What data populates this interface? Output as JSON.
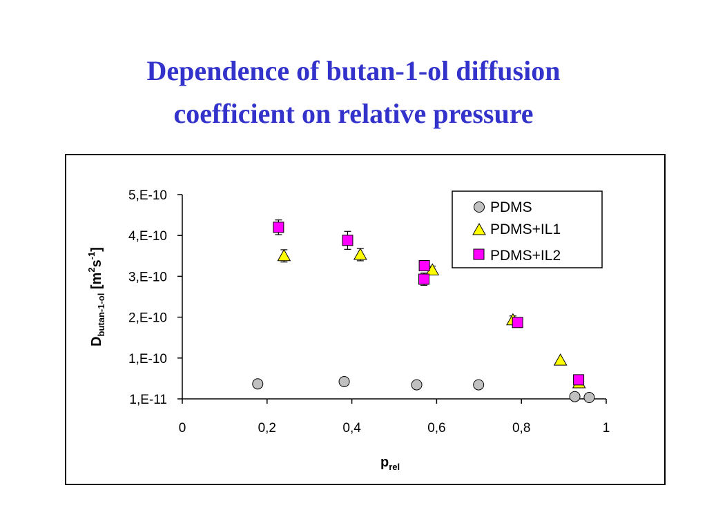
{
  "slide": {
    "title_line1": "Dependence of butan-1-ol diffusion",
    "title_line2": "coefficient on relative pressure"
  },
  "chart_data": {
    "type": "scatter",
    "xlim": [
      0,
      1
    ],
    "ylim": [
      1e-11,
      5e-10
    ],
    "x_ticks": [
      {
        "value": 0,
        "label": "0"
      },
      {
        "value": 0.2,
        "label": "0,2"
      },
      {
        "value": 0.4,
        "label": "0,4"
      },
      {
        "value": 0.6,
        "label": "0,6"
      },
      {
        "value": 0.8,
        "label": "0,8"
      },
      {
        "value": 1,
        "label": "1"
      }
    ],
    "y_ticks": [
      {
        "value": 1e-11,
        "label": "1,E-11"
      },
      {
        "value": 1e-10,
        "label": "1,E-10"
      },
      {
        "value": 2e-10,
        "label": "2,E-10"
      },
      {
        "value": 3e-10,
        "label": "3,E-10"
      },
      {
        "value": 4e-10,
        "label": "4,E-10"
      },
      {
        "value": 5e-10,
        "label": "5,E-10"
      }
    ],
    "xlabel": {
      "main": "p",
      "sub": "rel"
    },
    "ylabel": {
      "main": "D",
      "sub": "butan-1-ol",
      "unit_open": " [m",
      "sup1": "2",
      "mid": "s",
      "sup2": "-1",
      "unit_close": "]"
    },
    "legend_position": "top-right",
    "grid": false,
    "series": [
      {
        "name": "PDMS",
        "marker": "circle",
        "color": "#c0c0c0",
        "points": [
          {
            "x": 0.178,
            "y": 4.3e-11,
            "err": 3e-12
          },
          {
            "x": 0.382,
            "y": 4.8e-11,
            "err": 3e-12
          },
          {
            "x": 0.553,
            "y": 4.1e-11,
            "err": 3e-12
          },
          {
            "x": 0.699,
            "y": 4.1e-11,
            "err": 3e-12
          },
          {
            "x": 0.926,
            "y": 1.5e-11,
            "err": 0
          },
          {
            "x": 0.96,
            "y": 1.3e-11,
            "err": 0
          }
        ]
      },
      {
        "name": "PDMS+IL1",
        "marker": "triangle",
        "color": "#ffff00",
        "points": [
          {
            "x": 0.24,
            "y": 3.5e-10,
            "err": 1.5e-11
          },
          {
            "x": 0.42,
            "y": 3.53e-10,
            "err": 1.5e-11
          },
          {
            "x": 0.59,
            "y": 3.15e-10,
            "err": 1e-11
          },
          {
            "x": 0.78,
            "y": 1.93e-10,
            "err": 1e-11
          },
          {
            "x": 0.892,
            "y": 9.5e-11,
            "err": 0
          },
          {
            "x": 0.936,
            "y": 4.5e-11,
            "err": 0
          }
        ]
      },
      {
        "name": "PDMS+IL2",
        "marker": "square",
        "color": "#ff00ff",
        "points": [
          {
            "x": 0.227,
            "y": 4.2e-10,
            "err": 1.8e-11
          },
          {
            "x": 0.39,
            "y": 3.88e-10,
            "err": 2.2e-11
          },
          {
            "x": 0.571,
            "y": 3.26e-10,
            "err": 1e-11
          },
          {
            "x": 0.57,
            "y": 2.93e-10,
            "err": 1.5e-11
          },
          {
            "x": 0.791,
            "y": 1.87e-10,
            "err": 0
          },
          {
            "x": 0.935,
            "y": 5.2e-11,
            "err": 0
          }
        ]
      }
    ]
  }
}
